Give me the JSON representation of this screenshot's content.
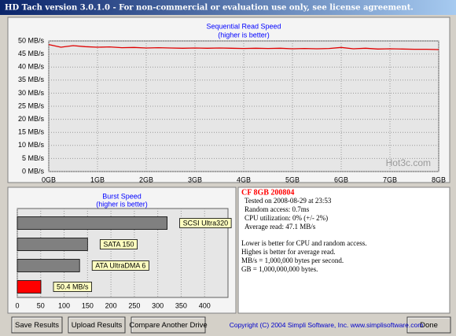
{
  "window": {
    "title": "HD Tach version 3.0.1.0  - For non-commercial or evaluation use only, see license agreement."
  },
  "chart_data": [
    {
      "type": "line",
      "title": "Sequential Read Speed",
      "subtitle": "(higher is better)",
      "x": [
        0,
        0.25,
        0.5,
        0.75,
        1,
        1.25,
        1.5,
        1.75,
        2,
        2.25,
        2.5,
        2.75,
        3,
        3.25,
        3.5,
        3.75,
        4,
        4.25,
        4.5,
        4.75,
        5,
        5.25,
        5.5,
        5.75,
        6,
        6.25,
        6.5,
        6.75,
        7,
        7.25,
        7.5,
        7.75,
        8
      ],
      "values": [
        48.6,
        47.6,
        48.2,
        47.8,
        47.6,
        47.7,
        47.4,
        47.5,
        47.3,
        47.4,
        47.3,
        47.2,
        47.3,
        47.2,
        47.3,
        47.2,
        47.1,
        47.2,
        47.1,
        47.2,
        47.0,
        47.1,
        47.0,
        47.1,
        47.5,
        47.0,
        47.2,
        46.9,
        47.0,
        46.9,
        46.8,
        46.8,
        46.7
      ],
      "color": "#e00000",
      "xlim": [
        0,
        8
      ],
      "xticks": [
        {
          "value": 0,
          "label": "0GB"
        },
        {
          "value": 1,
          "label": "1GB"
        },
        {
          "value": 2,
          "label": "2GB"
        },
        {
          "value": 3,
          "label": "3GB"
        },
        {
          "value": 4,
          "label": "4GB"
        },
        {
          "value": 5,
          "label": "5GB"
        },
        {
          "value": 6,
          "label": "6GB"
        },
        {
          "value": 7,
          "label": "7GB"
        },
        {
          "value": 8,
          "label": "8GB"
        }
      ],
      "ylim": [
        0,
        50
      ],
      "yticks": [
        {
          "value": 0,
          "label": "0 MB/s"
        },
        {
          "value": 5,
          "label": "5 MB/s"
        },
        {
          "value": 10,
          "label": "10 MB/s"
        },
        {
          "value": 15,
          "label": "15 MB/s"
        },
        {
          "value": 20,
          "label": "20 MB/s"
        },
        {
          "value": 25,
          "label": "25 MB/s"
        },
        {
          "value": 30,
          "label": "30 MB/s"
        },
        {
          "value": 35,
          "label": "35 MB/s"
        },
        {
          "value": 40,
          "label": "40 MB/s"
        },
        {
          "value": 45,
          "label": "45 MB/s"
        },
        {
          "value": 50,
          "label": "50 MB/s"
        }
      ],
      "grid": true,
      "watermark": "Hot3c.com"
    },
    {
      "type": "hbar",
      "title": "Burst Speed",
      "subtitle": "(higher is better)",
      "categories": [
        "SCSI Ultra320",
        "SATA 150",
        "ATA UltraDMA 6",
        null
      ],
      "values": [
        320,
        150,
        133,
        50.4
      ],
      "value_labels": [
        null,
        null,
        null,
        "50.4 MB/s"
      ],
      "colors": [
        "#808080",
        "#808080",
        "#808080",
        "#ff0000"
      ],
      "xlim": [
        0,
        450
      ],
      "xticks": [
        0,
        50,
        100,
        150,
        200,
        250,
        300,
        350,
        400
      ],
      "grid": true
    }
  ],
  "info": {
    "drive": "CF 8GB 200804",
    "results": [
      "Tested on 2008-08-29 at 23:53",
      "Random access: 0.7ms",
      "CPU utilization: 0% (+/- 2%)",
      "Average read: 47.1 MB/s"
    ],
    "notes": [
      "Lower is better for CPU and random access.",
      "Highes is better for average read.",
      "MB/s = 1,000,000 bytes per second.",
      "GB = 1,000,000,000 bytes."
    ]
  },
  "buttons": [
    "Save Results",
    "Upload Results",
    "Compare Another Drive",
    "Done"
  ],
  "copyright": "Copyright (C) 2004 Simpli Software, Inc. www.simplisoftware.com"
}
